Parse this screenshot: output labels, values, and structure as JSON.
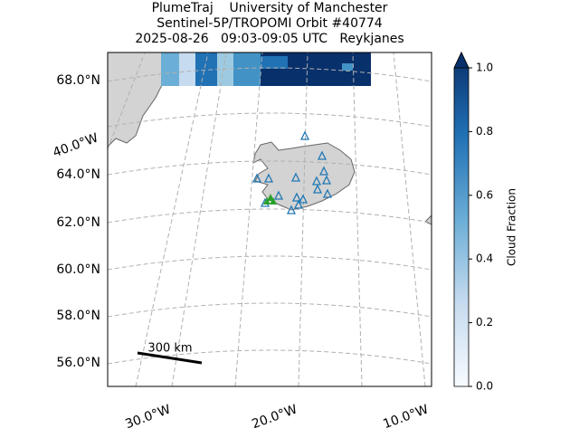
{
  "title": [
    "PlumeTraj    University of Manchester",
    "Sentinel-5P/TROPOMI Orbit #40774",
    "2025-08-26   09:03-09:05 UTC   Reykjanes"
  ],
  "lat_labels": [
    "68.0°N",
    "64.0°N",
    "62.0°N",
    "60.0°N",
    "58.0°N",
    "56.0°N"
  ],
  "lon_labels": [
    "40.0°W",
    "30.0°W",
    "20.0°W",
    "10.0°W"
  ],
  "scale_bar": "300 km",
  "colorbar": {
    "label": "Cloud Fraction",
    "lim": [
      0,
      1
    ],
    "cmap": [
      "#f7fbff",
      "#c6dbef",
      "#6baed6",
      "#2171b5",
      "#08306b"
    ],
    "ticks": [
      {
        "value": 0,
        "label": "0.0"
      },
      {
        "value": 0.2,
        "label": "0.2"
      },
      {
        "value": 0.4,
        "label": "0.4"
      },
      {
        "value": 0.6,
        "label": "0.6"
      },
      {
        "value": 0.8,
        "label": "0.8"
      },
      {
        "value": 1,
        "label": "1.0"
      }
    ]
  }
}
